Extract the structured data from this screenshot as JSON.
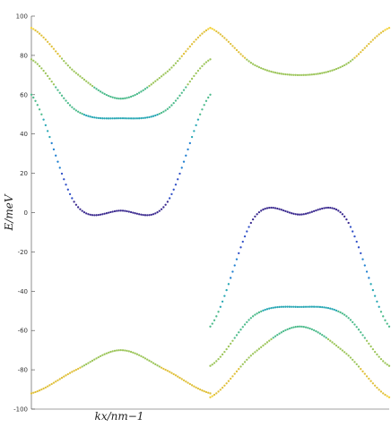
{
  "chart_data": {
    "type": "scatter",
    "title": "",
    "xlabel": "k_x/nm^{-1}",
    "xlabel_display": "kx/nm−1",
    "ylabel": "E/meV",
    "ylim": [
      -100,
      100
    ],
    "xlim": [
      0,
      2
    ],
    "yticks": [
      -100,
      -80,
      -60,
      -40,
      -20,
      0,
      20,
      40,
      60,
      80,
      100
    ],
    "ytick_labels": [
      "-100",
      "-80",
      "-60",
      "-40",
      "-20",
      "0",
      "20",
      "40",
      "60",
      "80",
      "100"
    ],
    "grid": false,
    "legend": "none",
    "colormap": [
      "#3b2a8f",
      "#2f4fc7",
      "#1f7fd0",
      "#27a7b4",
      "#4dbb8c",
      "#9cc55a",
      "#e0c03a",
      "#f3d23a"
    ],
    "colors": {
      "axis": "#444444",
      "flat_band_lower": "#3b2a8f",
      "flat_band_upper": "#f3d23a",
      "flat_band_orange": "#e7a83a"
    },
    "series": [
      {
        "segment": "left",
        "x": [
          0.0,
          0.25,
          0.5,
          0.75,
          1.0
        ],
        "y": [
          94,
          71,
          58,
          71,
          94
        ]
      },
      {
        "segment": "left",
        "x": [
          0.0,
          0.25,
          0.5,
          0.75,
          1.0
        ],
        "y": [
          78,
          52,
          48,
          52,
          78
        ]
      },
      {
        "segment": "left",
        "x": [
          0.0,
          0.25,
          0.5,
          0.75,
          1.0
        ],
        "y": [
          60,
          4,
          1,
          4,
          60
        ]
      },
      {
        "segment": "left",
        "x": [
          0.0,
          0.25,
          0.5,
          0.75,
          1.0
        ],
        "y": [
          -92,
          -80,
          -70,
          -80,
          -92
        ]
      },
      {
        "segment": "right",
        "x": [
          1.0,
          1.25,
          1.5,
          1.75,
          2.0
        ],
        "y": [
          94,
          75,
          70,
          75,
          94
        ]
      },
      {
        "segment": "right",
        "x": [
          1.0,
          1.25,
          1.5,
          1.75,
          2.0
        ],
        "y": [
          -58,
          -2,
          -1,
          -2,
          -58
        ]
      },
      {
        "segment": "right",
        "x": [
          1.0,
          1.25,
          1.5,
          1.75,
          2.0
        ],
        "y": [
          -78,
          -52,
          -48,
          -52,
          -78
        ]
      },
      {
        "segment": "right",
        "x": [
          1.0,
          1.25,
          1.5,
          1.75,
          2.0
        ],
        "y": [
          -94,
          -71,
          -58,
          -71,
          -94
        ]
      }
    ]
  }
}
